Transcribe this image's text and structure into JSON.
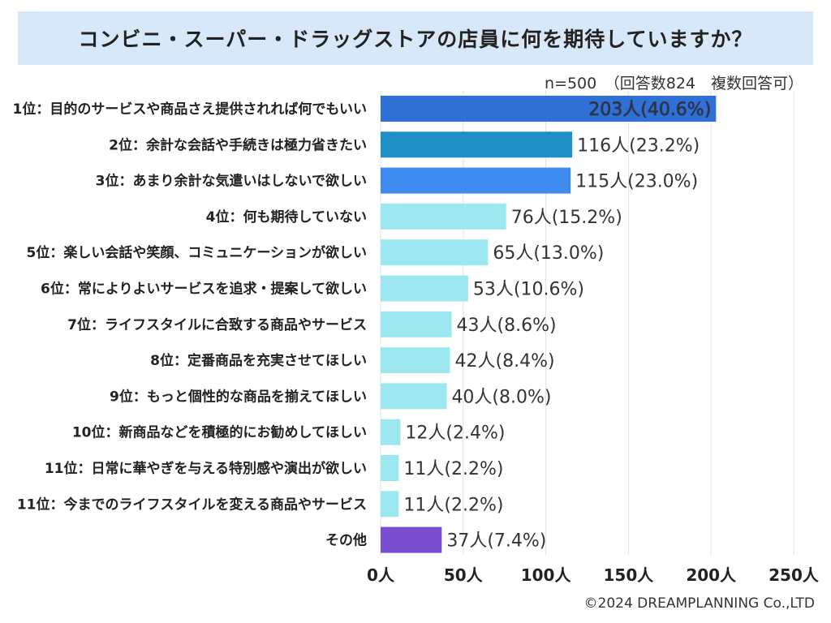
{
  "title": "コンビニ・スーパー・ドラッグストアの店員に何を期待していますか？",
  "sample_note": "n=500　（回答数824　複数回答可）",
  "copyright": "©2024 DREAMPLANNING Co.,LTD",
  "colors": {
    "title_bg": "#d9e8f9",
    "top1": "#2f6fd6",
    "top2": "#1f8fc8",
    "top3": "#3e8cf0",
    "others": "#9de8f0",
    "misc": "#7a4fcf",
    "grid": "#e2e2e2"
  },
  "chart_data": {
    "type": "bar",
    "orientation": "horizontal",
    "xlim": [
      0,
      250
    ],
    "xticks": [
      "0人",
      "50人",
      "100人",
      "150人",
      "200人",
      "250人"
    ],
    "xtick_values": [
      0,
      50,
      100,
      150,
      200,
      250
    ],
    "grid": true,
    "categories": [
      "1位：目的のサービスや商品さえ提供されれば何でもいい",
      "2位：余計な会話や手続きは極力省きたい",
      "3位：あまり余計な気遣いはしないで欲しい",
      "4位：何も期待していない",
      "5位：楽しい会話や笑顔、コミュニケーションが欲しい",
      "6位：常によりよいサービスを追求・提案して欲しい",
      "7位：ライフスタイルに合致する商品やサービス",
      "8位：定番商品を充実させてほしい",
      "9位：もっと個性的な商品を揃えてほしい",
      "10位：新商品などを積極的にお勧めしてほしい",
      "11位：日常に華やぎを与える特別感や演出が欲しい",
      "11位：今までのライフスタイルを変える商品やサービス",
      "その他"
    ],
    "values": [
      203,
      116,
      115,
      76,
      65,
      53,
      43,
      42,
      40,
      12,
      11,
      11,
      37
    ],
    "data_labels": [
      "203人(40.6%)",
      "116人(23.2%)",
      "115人(23.0%)",
      "76人(15.2%)",
      "65人(13.0%)",
      "53人(10.6%)",
      "43人(8.6%)",
      "42人(8.4%)",
      "40人(8.0%)",
      "12人(2.4%)",
      "11人(2.2%)",
      "11人(2.2%)",
      "37人(7.4%)"
    ],
    "bar_color_keys": [
      "top1",
      "top2",
      "top3",
      "others",
      "others",
      "others",
      "others",
      "others",
      "others",
      "others",
      "others",
      "others",
      "misc"
    ]
  }
}
